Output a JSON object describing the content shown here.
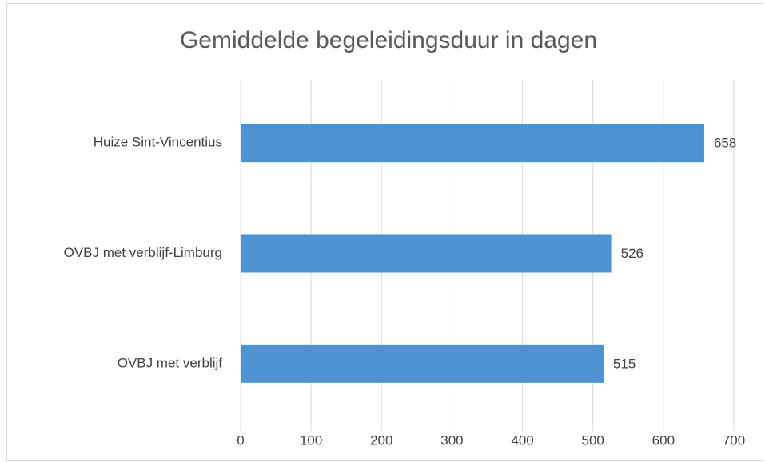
{
  "chart_data": {
    "type": "bar",
    "orientation": "horizontal",
    "title": "Gemiddelde begeleidingsduur in dagen",
    "categories": [
      "Huize Sint-Vincentius",
      "OVBJ met verblijf-Limburg",
      "OVBJ met verblijf"
    ],
    "values": [
      658,
      526,
      515
    ],
    "color": "#4e93d1",
    "xlim": [
      0,
      700
    ],
    "xticks": [
      0,
      100,
      200,
      300,
      400,
      500,
      600,
      700
    ],
    "grid": true
  }
}
